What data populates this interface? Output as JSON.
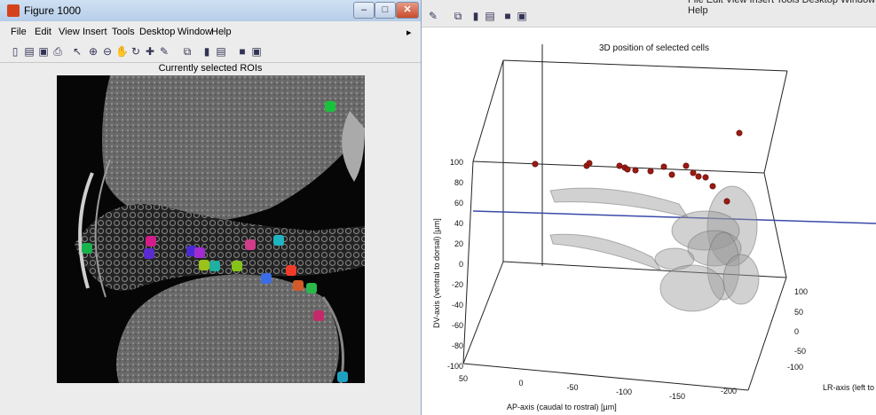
{
  "left_window": {
    "title": "Figure 1000",
    "menu": [
      "File",
      "Edit",
      "View",
      "Insert",
      "Tools",
      "Desktop",
      "Window",
      "Help"
    ],
    "figure_title": "Currently selected ROIs",
    "rois": [
      {
        "color": "#18c23a"
      },
      {
        "color": "#18b34b"
      },
      {
        "color": "#d21c8a"
      },
      {
        "color": "#5a2bd1"
      },
      {
        "color": "#4a2bd1"
      },
      {
        "color": "#a12bd1"
      },
      {
        "color": "#d03b8a"
      },
      {
        "color": "#1fb5c0"
      },
      {
        "color": "#9ac21a"
      },
      {
        "color": "#1fb0a0"
      },
      {
        "color": "#86c21a"
      },
      {
        "color": "#3a6ee8"
      },
      {
        "color": "#f03a2a"
      },
      {
        "color": "#d05a2a"
      },
      {
        "color": "#2ab84a"
      },
      {
        "color": "#c42a6a"
      },
      {
        "color": "#1fa0c0"
      }
    ]
  },
  "right_window": {
    "menu_partial": "File  Edit  View  Insert  Tools  Desktop  Window  Help",
    "chart_title": "3D position of selected cells",
    "z_ticks": [
      "100",
      "80",
      "60",
      "40",
      "20",
      "0",
      "-20",
      "-40",
      "-60",
      "-80",
      "-100"
    ],
    "x_ticks": [
      "50",
      "0",
      "-50",
      "-100",
      "-150",
      "-200"
    ],
    "y_ticks": [
      "100",
      "50",
      "0",
      "-50",
      "-100"
    ],
    "xlabel": "AP-axis (caudal to rostral) [µm]",
    "ylabel": "LR-axis (left to",
    "zlabel": "DV-axis (ventral to dorsal) [µm]"
  },
  "chart_data": {
    "type": "scatter",
    "title": "3D position of selected cells",
    "xlabel": "AP-axis (caudal to rostral) [µm]",
    "ylabel": "LR-axis (left to",
    "zlabel": "DV-axis (ventral to dorsal) [µm]",
    "zlim": [
      -100,
      100
    ],
    "grid": false,
    "points_marker_color": "#9b1a12"
  }
}
